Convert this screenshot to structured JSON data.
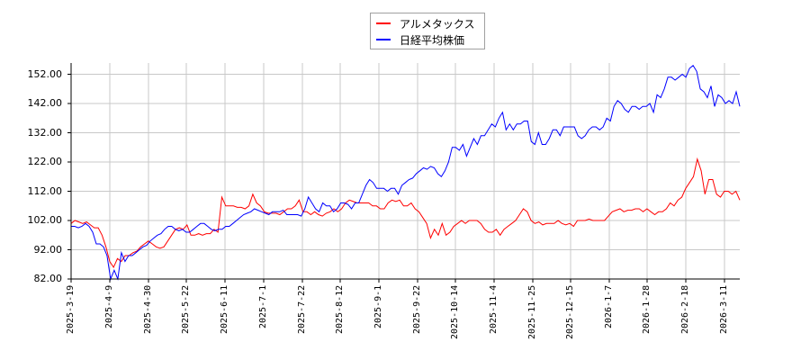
{
  "chart_data": {
    "type": "line",
    "title": "",
    "xlabel": "",
    "ylabel": "",
    "ylim": [
      82,
      156
    ],
    "grid": true,
    "legend_position": "top-center",
    "y_ticks": [
      "82.00",
      "92.00",
      "102.00",
      "112.00",
      "122.00",
      "132.00",
      "142.00",
      "152.00"
    ],
    "x_ticks": [
      "2025-3-19",
      "2025-4-9",
      "2025-4-30",
      "2025-5-22",
      "2025-6-11",
      "2025-7-1",
      "2025-7-22",
      "2025-8-12",
      "2025-9-1",
      "2025-9-22",
      "2025-10-14",
      "2025-11-4",
      "2025-11-25",
      "2025-12-15",
      "2026-1-7",
      "2026-1-28",
      "2026-2-18",
      "2026-3-11"
    ],
    "series": [
      {
        "name": "アルメタックス",
        "color": "#ff0000",
        "values": [
          101,
          102,
          101.5,
          101,
          101.5,
          100.5,
          99.5,
          99.5,
          97,
          93,
          88,
          86,
          89,
          88,
          90,
          90,
          91,
          91.5,
          93,
          94,
          95,
          94,
          93,
          92.5,
          93,
          95,
          97,
          99,
          99.5,
          99,
          100.5,
          97,
          97,
          97.5,
          97,
          97.5,
          97.5,
          99,
          98,
          110,
          107,
          107,
          107,
          106.5,
          106.5,
          106,
          107,
          111,
          108,
          107,
          105,
          104.5,
          104.5,
          104.5,
          104,
          105,
          106,
          106,
          107,
          109,
          105,
          105,
          104,
          105,
          104,
          103.5,
          104.5,
          105,
          106,
          105,
          106,
          108,
          109,
          108.5,
          108,
          108,
          108,
          108,
          107,
          107,
          106,
          106,
          108,
          109,
          108.5,
          109,
          107,
          107,
          108,
          106,
          105,
          103,
          101,
          96,
          99,
          97,
          101,
          97,
          98,
          100,
          101,
          102,
          101,
          102,
          102,
          102,
          101,
          99,
          98,
          98,
          99,
          97,
          99,
          100,
          101,
          102,
          104,
          106,
          105,
          102,
          101,
          101.5,
          100.5,
          101,
          101,
          101,
          102,
          101,
          100.5,
          101,
          100,
          102,
          102,
          102,
          102.5,
          102,
          102,
          102,
          102,
          103.5,
          105,
          105.5,
          106,
          105,
          105.5,
          105.5,
          106,
          106,
          105,
          106,
          105,
          104,
          105,
          105,
          106,
          108,
          107,
          109,
          110,
          113,
          115,
          117,
          123,
          119,
          111,
          116,
          116,
          111,
          110,
          112,
          112,
          111,
          112,
          109
        ]
      },
      {
        "name": "日経平均株価",
        "color": "#0000ff",
        "values": [
          100,
          100,
          99.5,
          100,
          101,
          100,
          98,
          94,
          94,
          93,
          90,
          82,
          85,
          82,
          91,
          88,
          90,
          90,
          91,
          92,
          93,
          93.5,
          95,
          96,
          97,
          97.5,
          99,
          100,
          100,
          99,
          98.5,
          99,
          98,
          98,
          99,
          100,
          101,
          101,
          100,
          99,
          98.5,
          99,
          99,
          100,
          100,
          101,
          102,
          103,
          104,
          104.5,
          105,
          106,
          105.5,
          105,
          104.5,
          104,
          105,
          105,
          105,
          105.5,
          104,
          104,
          104,
          104,
          103.5,
          106,
          110,
          108,
          106,
          105,
          108,
          107,
          107,
          105,
          106,
          108,
          108,
          107.5,
          106,
          108,
          108,
          111,
          114,
          116,
          115,
          113,
          113,
          113,
          112,
          113,
          113,
          111,
          114,
          115,
          116,
          116.5,
          118,
          119,
          120,
          119.5,
          120.5,
          120,
          118,
          117,
          119,
          122,
          127,
          127,
          126,
          128,
          124,
          127,
          130,
          128,
          131,
          131,
          133,
          135,
          134,
          137,
          139,
          133,
          135,
          133,
          135,
          135,
          136,
          136,
          129,
          128,
          132,
          128,
          128,
          130,
          133,
          133,
          131,
          134,
          134,
          134,
          134,
          131,
          130,
          131,
          133,
          134,
          134,
          133,
          134,
          137,
          136,
          141,
          143,
          142,
          140,
          139,
          141,
          141,
          140,
          141,
          141,
          142,
          139,
          145,
          144,
          147,
          151,
          151,
          150,
          151,
          152,
          151,
          154,
          155,
          153,
          147,
          146,
          144,
          148,
          141,
          145,
          144,
          142,
          143,
          142,
          146,
          141
        ]
      }
    ]
  },
  "legend": {
    "items": [
      {
        "label": "アルメタックス",
        "color": "#ff0000"
      },
      {
        "label": "日経平均株価",
        "color": "#0000ff"
      }
    ]
  }
}
